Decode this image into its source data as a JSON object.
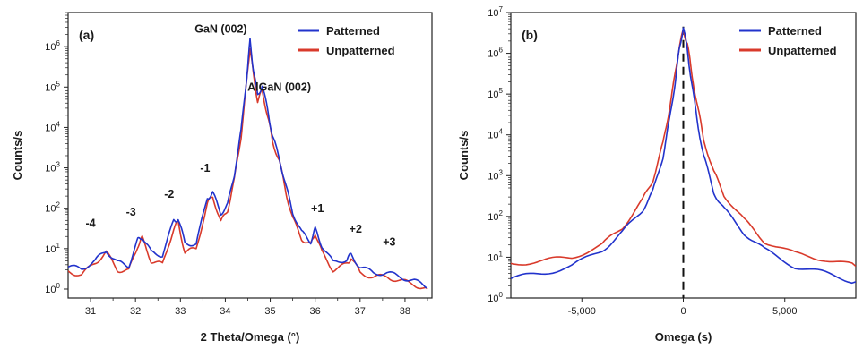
{
  "chart_data": [
    {
      "type": "line",
      "panel_label": "(a)",
      "xlabel": "2 Theta/Omega (°)",
      "ylabel": "Counts/s",
      "xlim": [
        30.5,
        38.6
      ],
      "ylim": [
        0.6,
        7000000
      ],
      "yscale": "log",
      "xticks": [
        31,
        32,
        33,
        34,
        35,
        36,
        37,
        38
      ],
      "yticks": [
        {
          "value": 1,
          "base": "10",
          "exp": "0"
        },
        {
          "value": 10,
          "base": "10",
          "exp": "1"
        },
        {
          "value": 100,
          "base": "10",
          "exp": "2"
        },
        {
          "value": 1000,
          "base": "10",
          "exp": "3"
        },
        {
          "value": 10000,
          "base": "10",
          "exp": "4"
        },
        {
          "value": 100000,
          "base": "10",
          "exp": "5"
        },
        {
          "value": 1000000,
          "base": "10",
          "exp": "6"
        }
      ],
      "legend": {
        "placement": "top-right"
      },
      "annotations": [
        {
          "text": "GaN (002)",
          "x": 33.9,
          "y": 2200000
        },
        {
          "text": "AlGaN (002)",
          "x": 35.2,
          "y": 80000
        },
        {
          "text": "-4",
          "x": 31.0,
          "y": 35
        },
        {
          "text": "-3",
          "x": 31.9,
          "y": 65
        },
        {
          "text": "-2",
          "x": 32.75,
          "y": 180
        },
        {
          "text": "-1",
          "x": 33.55,
          "y": 800
        },
        {
          "text": "+1",
          "x": 36.05,
          "y": 80
        },
        {
          "text": "+2",
          "x": 36.9,
          "y": 25
        },
        {
          "text": "+3",
          "x": 37.65,
          "y": 12
        }
      ],
      "series": [
        {
          "name": "Patterned",
          "color": "#2233cc",
          "x": [
            30.5,
            30.8,
            31.1,
            31.35,
            31.6,
            31.85,
            32.05,
            32.15,
            32.35,
            32.6,
            32.85,
            32.95,
            33.1,
            33.35,
            33.6,
            33.72,
            33.9,
            34.05,
            34.2,
            34.35,
            34.48,
            34.55,
            34.62,
            34.72,
            34.82,
            34.95,
            35.05,
            35.2,
            35.35,
            35.5,
            35.7,
            35.9,
            36.0,
            36.15,
            36.4,
            36.7,
            36.8,
            37.0,
            37.3,
            37.6,
            37.9,
            38.2,
            38.5
          ],
          "y": [
            3.5,
            3.2,
            5,
            9,
            4.5,
            3.8,
            16,
            20,
            8,
            7,
            48,
            55,
            14,
            13,
            180,
            240,
            75,
            120,
            700,
            8000,
            200000,
            1400000,
            300000,
            60000,
            110000,
            25000,
            6000,
            1800,
            350,
            80,
            25,
            15,
            30,
            12,
            4.5,
            5.5,
            7,
            3.5,
            2.5,
            2.5,
            2,
            1.6,
            1.1
          ]
        },
        {
          "name": "Unpatterned",
          "color": "#d93a2b",
          "x": [
            30.5,
            30.8,
            31.1,
            31.35,
            31.6,
            31.85,
            32.05,
            32.15,
            32.35,
            32.6,
            32.85,
            32.95,
            33.1,
            33.35,
            33.6,
            33.72,
            33.9,
            34.05,
            34.2,
            34.35,
            34.48,
            34.55,
            34.62,
            34.72,
            34.82,
            34.95,
            35.05,
            35.2,
            35.35,
            35.5,
            35.7,
            35.9,
            36.0,
            36.15,
            36.4,
            36.7,
            36.8,
            37.0,
            37.3,
            37.6,
            37.9,
            38.2,
            38.5
          ],
          "y": [
            2.8,
            2.2,
            4.5,
            8,
            3,
            2.8,
            12,
            18,
            5,
            4,
            32,
            45,
            8,
            10,
            130,
            200,
            45,
            90,
            500,
            6000,
            150000,
            1000000,
            220000,
            45000,
            80000,
            18000,
            4500,
            1500,
            250,
            55,
            18,
            12,
            25,
            8,
            3,
            4,
            6,
            2.5,
            2,
            2,
            1.6,
            1.3,
            1
          ]
        }
      ]
    },
    {
      "type": "line",
      "panel_label": "(b)",
      "xlabel": "Omega (s)",
      "ylabel": "Counts/s",
      "xlim": [
        -8500,
        8500
      ],
      "ylim": [
        1,
        10000000
      ],
      "yscale": "log",
      "xticks": [
        {
          "value": -5000,
          "label": "-5,000"
        },
        {
          "value": 0,
          "label": "0"
        },
        {
          "value": 5000,
          "label": "5,000"
        }
      ],
      "yticks": [
        {
          "value": 1,
          "base": "10",
          "exp": "0"
        },
        {
          "value": 10,
          "base": "10",
          "exp": "1"
        },
        {
          "value": 100,
          "base": "10",
          "exp": "2"
        },
        {
          "value": 1000,
          "base": "10",
          "exp": "3"
        },
        {
          "value": 10000,
          "base": "10",
          "exp": "4"
        },
        {
          "value": 100000,
          "base": "10",
          "exp": "5"
        },
        {
          "value": 1000000,
          "base": "10",
          "exp": "6"
        },
        {
          "value": 10000000,
          "base": "10",
          "exp": "7"
        }
      ],
      "legend": {
        "placement": "top-right"
      },
      "reference_line": {
        "x": 0,
        "style": "dashed"
      },
      "series": [
        {
          "name": "Patterned",
          "color": "#2233cc",
          "x": [
            -8500,
            -7000,
            -5500,
            -4000,
            -3000,
            -2000,
            -1500,
            -1000,
            -700,
            -400,
            -200,
            0,
            200,
            400,
            700,
            1000,
            1500,
            2000,
            3000,
            4000,
            5500,
            7000,
            8500
          ],
          "y": [
            3,
            4,
            6,
            15,
            40,
            150,
            400,
            3000,
            20000,
            200000,
            1200000,
            4500000,
            1200000,
            200000,
            20000,
            3000,
            400,
            150,
            40,
            15,
            6,
            4,
            2.5
          ]
        },
        {
          "name": "Unpatterned",
          "color": "#d93a2b",
          "x": [
            -8500,
            -7000,
            -5500,
            -4000,
            -3000,
            -2000,
            -1500,
            -1000,
            -700,
            -400,
            -200,
            0,
            200,
            400,
            700,
            1000,
            1500,
            2000,
            3000,
            4000,
            5500,
            7000,
            8500
          ],
          "y": [
            7,
            8,
            10,
            20,
            55,
            250,
            800,
            6000,
            40000,
            300000,
            1500000,
            3500000,
            1800000,
            350000,
            50000,
            8000,
            1200,
            350,
            80,
            25,
            12,
            9,
            6
          ]
        }
      ]
    }
  ]
}
